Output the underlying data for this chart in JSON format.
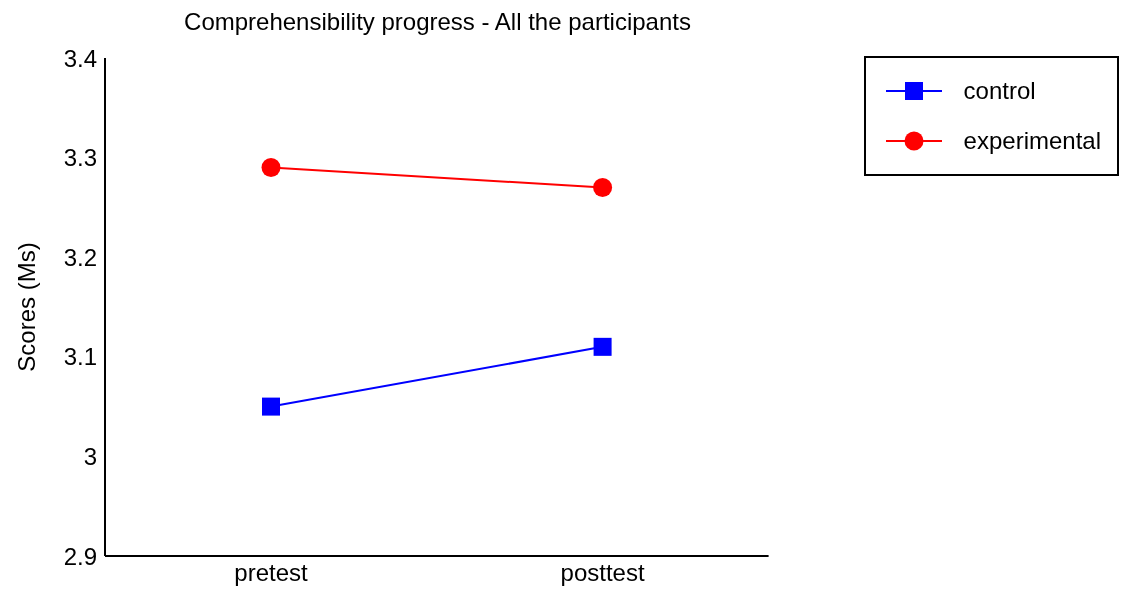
{
  "chart_data": {
    "type": "line",
    "title": "Comprehensibility progress - All the participants",
    "ylabel": "Scores (Ms)",
    "categories": [
      "pretest",
      "posttest"
    ],
    "series": [
      {
        "name": "control",
        "color": "#0000ff",
        "marker": "square",
        "values": [
          3.05,
          3.11
        ]
      },
      {
        "name": "experimental",
        "color": "#ff0000",
        "marker": "circle",
        "values": [
          3.29,
          3.27
        ]
      }
    ],
    "ylim": [
      2.9,
      3.4
    ],
    "yticks": [
      2.9,
      3,
      3.1,
      3.2,
      3.3,
      3.4
    ],
    "grid": false,
    "legend": "top right"
  }
}
